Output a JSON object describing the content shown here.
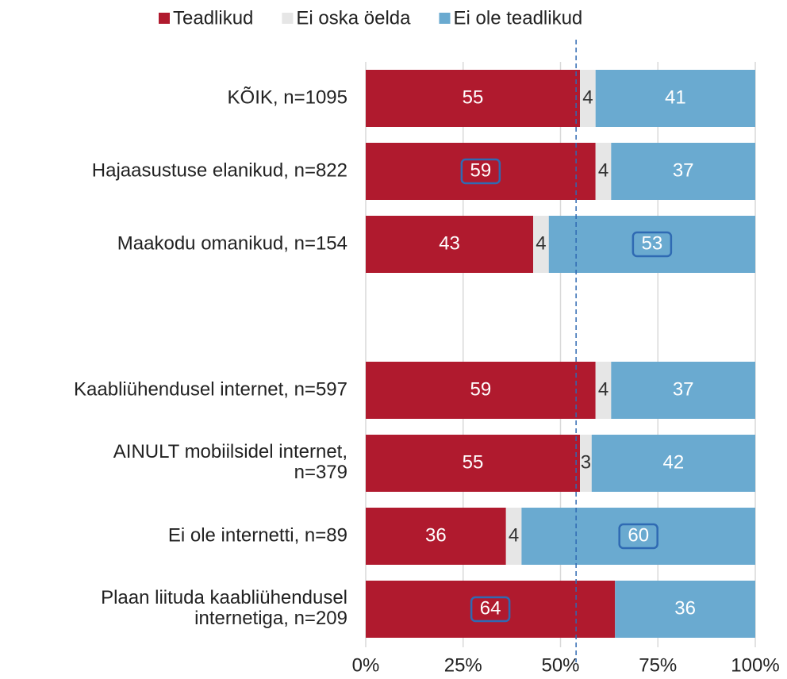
{
  "chart_data": {
    "type": "stacked_barh",
    "categories": [
      "KÕIK, n=1095",
      "Hajaasustuse elanikud, n=822",
      "Maakodu omanikud, n=154",
      null,
      "Kaabliühendusel internet, n=597",
      "AINULT mobiilsidel internet,\nn=379",
      "Ei ole internetti, n=89",
      "Plaan liituda kaabliühendusel\ninternetiga, n=209"
    ],
    "series": [
      {
        "name": "Teadlikud",
        "color": "#b01a2e",
        "values": [
          55,
          59,
          43,
          null,
          59,
          55,
          36,
          64
        ],
        "boxed": [
          false,
          true,
          false,
          false,
          false,
          false,
          false,
          true
        ]
      },
      {
        "name": "Ei oska öelda",
        "color": "#e6e6e6",
        "values": [
          4,
          4,
          4,
          null,
          4,
          3,
          4,
          null
        ],
        "boxed": [
          false,
          false,
          false,
          false,
          false,
          false,
          false,
          false
        ]
      },
      {
        "name": "Ei ole teadlikud",
        "color": "#6aaad0",
        "values": [
          41,
          37,
          53,
          null,
          37,
          42,
          60,
          36
        ],
        "boxed": [
          false,
          false,
          true,
          false,
          false,
          false,
          true,
          false
        ]
      }
    ],
    "xlim": [
      0,
      100
    ],
    "xticks": [
      {
        "value": 0,
        "label": "0%"
      },
      {
        "value": 25,
        "label": "25%"
      },
      {
        "value": 50,
        "label": "50%"
      },
      {
        "value": 75,
        "label": "75%"
      },
      {
        "value": 100,
        "label": "100%"
      }
    ],
    "grid": true,
    "reference_line": 54,
    "reference_color": "#2f6ab3",
    "legend": "top"
  }
}
